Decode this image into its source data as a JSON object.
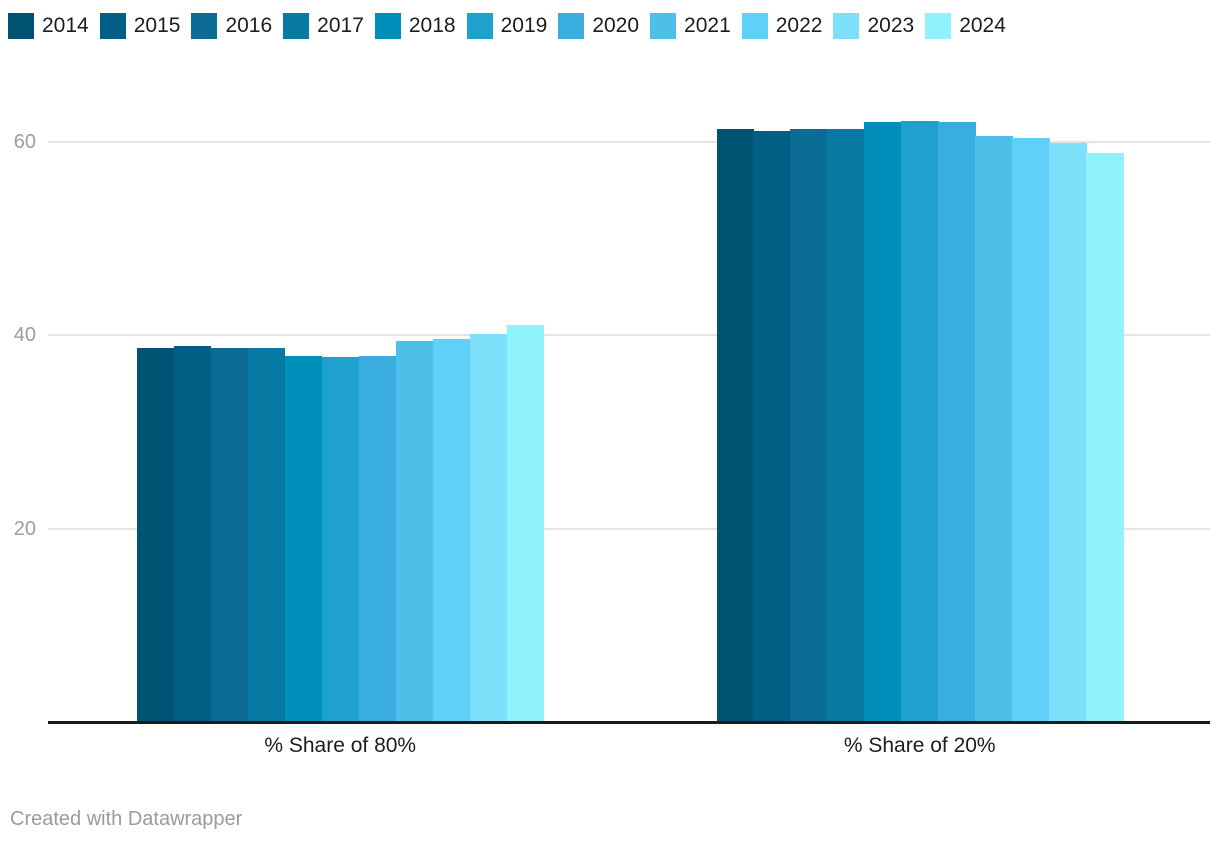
{
  "chart_data": {
    "type": "bar",
    "title": "",
    "categories": [
      "% Share of 80%",
      "% Share of 20%"
    ],
    "series": [
      {
        "name": "2014",
        "color": "#005273",
        "values": [
          38.7,
          61.3
        ]
      },
      {
        "name": "2015",
        "color": "#015f86",
        "values": [
          38.9,
          61.1
        ]
      },
      {
        "name": "2016",
        "color": "#0c6d94",
        "values": [
          38.7,
          61.3
        ]
      },
      {
        "name": "2017",
        "color": "#067aa3",
        "values": [
          38.7,
          61.3
        ]
      },
      {
        "name": "2018",
        "color": "#008fba",
        "values": [
          37.9,
          62.1
        ]
      },
      {
        "name": "2019",
        "color": "#1fa1cd",
        "values": [
          37.8,
          62.2
        ]
      },
      {
        "name": "2020",
        "color": "#39aede",
        "values": [
          37.9,
          62.1
        ]
      },
      {
        "name": "2021",
        "color": "#4dbfe9",
        "values": [
          39.4,
          60.6
        ]
      },
      {
        "name": "2022",
        "color": "#5fd1f9",
        "values": [
          39.6,
          60.4
        ]
      },
      {
        "name": "2023",
        "color": "#7ce0fb",
        "values": [
          40.1,
          59.9
        ]
      },
      {
        "name": "2024",
        "color": "#8ff2fd",
        "values": [
          41.1,
          58.9
        ]
      }
    ],
    "yticks": [
      20,
      40,
      60
    ],
    "ylim": [
      0,
      67
    ],
    "grid": "horizontal",
    "legend_position": "top",
    "xlabel": "",
    "ylabel": ""
  },
  "footer": {
    "credit": "Created with Datawrapper"
  }
}
